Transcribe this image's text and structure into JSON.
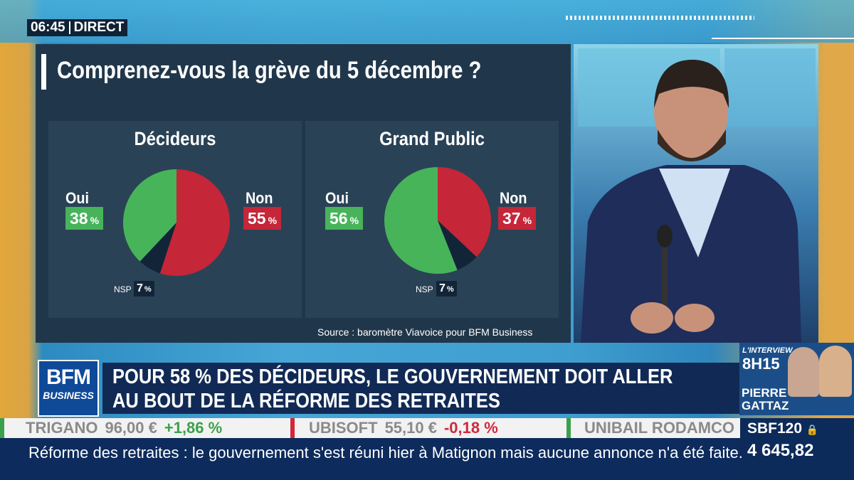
{
  "broadcast": {
    "time": "06:45",
    "live_label": "DIRECT"
  },
  "chart_panel": {
    "title": "Comprenez-vous la grève du 5 décembre ?",
    "source": "Source : baromètre Viavoice pour BFM Business"
  },
  "chart_data": [
    {
      "type": "pie",
      "title": "Décideurs",
      "labels": [
        "Oui",
        "Non",
        "NSP"
      ],
      "values": [
        38,
        55,
        7
      ],
      "unit": "%",
      "colors": [
        "#47b45a",
        "#c52638",
        "#122538"
      ]
    },
    {
      "type": "pie",
      "title": "Grand Public",
      "labels": [
        "Oui",
        "Non",
        "NSP"
      ],
      "values": [
        56,
        37,
        7
      ],
      "unit": "%",
      "colors": [
        "#47b45a",
        "#c52638",
        "#122538"
      ]
    }
  ],
  "logo": {
    "line1": "BFM",
    "line2": "BUSINESS"
  },
  "headline": {
    "line1": "POUR 58 % DES DÉCIDEURS, LE GOUVERNEMENT DOIT ALLER",
    "line2": "AU BOUT DE LA RÉFORME DES RETRAITES"
  },
  "interview": {
    "label": "L'INTERVIEW",
    "time": "8H15",
    "first_name": "PIERRE",
    "last_name": "GATTAZ"
  },
  "ticker": [
    {
      "name": "TRIGANO",
      "price": "96,00 €",
      "change": "+1,86 %",
      "direction": "up"
    },
    {
      "name": "UBISOFT",
      "price": "55,10 €",
      "change": "-0,18 %",
      "direction": "down"
    },
    {
      "name": "UNIBAIL RODAMCO",
      "price": "",
      "change": "",
      "direction": ""
    }
  ],
  "index": {
    "name": "SBF120",
    "value": "4 645,82"
  },
  "news_crawl": "Réforme des retraites : le gouvernement s'est réuni hier à Matignon mais aucune annonce n'a été faite."
}
